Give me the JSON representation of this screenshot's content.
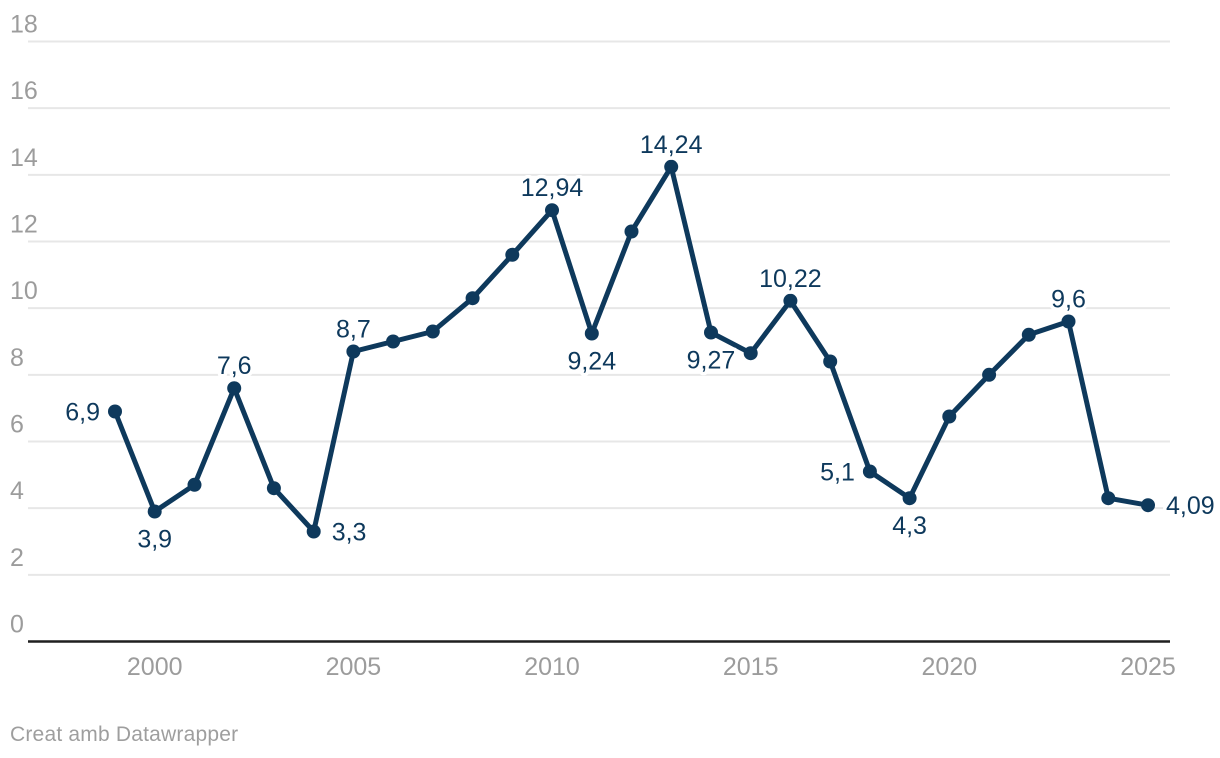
{
  "chart_data": {
    "type": "line",
    "title": "",
    "xlabel": "",
    "ylabel": "",
    "x": [
      1999,
      2000,
      2001,
      2002,
      2003,
      2004,
      2005,
      2006,
      2007,
      2008,
      2009,
      2010,
      2011,
      2012,
      2013,
      2014,
      2015,
      2016,
      2017,
      2018,
      2019,
      2020,
      2021,
      2022,
      2023,
      2024,
      2025
    ],
    "values": [
      6.9,
      3.9,
      4.7,
      7.6,
      4.6,
      3.3,
      8.7,
      9.0,
      9.3,
      10.3,
      11.6,
      12.94,
      9.24,
      12.3,
      14.24,
      9.27,
      8.65,
      10.22,
      8.4,
      5.1,
      4.3,
      6.75,
      8.0,
      9.2,
      9.6,
      4.3,
      4.09
    ],
    "point_labels": [
      {
        "text": "6,9",
        "pos": "left"
      },
      {
        "text": "3,9",
        "pos": "below"
      },
      null,
      {
        "text": "7,6",
        "pos": "above"
      },
      null,
      {
        "text": "3,3",
        "pos": "right"
      },
      {
        "text": "8,7",
        "pos": "above"
      },
      null,
      null,
      null,
      null,
      {
        "text": "12,94",
        "pos": "above"
      },
      {
        "text": "9,24",
        "pos": "below"
      },
      null,
      {
        "text": "14,24",
        "pos": "above"
      },
      {
        "text": "9,27",
        "pos": "below"
      },
      null,
      {
        "text": "10,22",
        "pos": "above"
      },
      null,
      {
        "text": "5,1",
        "pos": "left"
      },
      {
        "text": "4,3",
        "pos": "below"
      },
      null,
      null,
      null,
      {
        "text": "9,6",
        "pos": "above"
      },
      null,
      {
        "text": "4,09",
        "pos": "right"
      }
    ],
    "xlim": [
      1999,
      2025
    ],
    "ylim": [
      0,
      18
    ],
    "y_ticks": [
      0,
      2,
      4,
      6,
      8,
      10,
      12,
      14,
      16,
      18
    ],
    "x_ticks": [
      2000,
      2005,
      2010,
      2015,
      2020,
      2025
    ],
    "grid": true,
    "legend_position": "none",
    "line_color": "#0e395c",
    "grid_color": "#e7e7e7",
    "axis_line_color": "#1f1f1f",
    "tick_label_color": "#9c9c9c"
  },
  "footer": {
    "attribution": "Creat amb Datawrapper"
  }
}
